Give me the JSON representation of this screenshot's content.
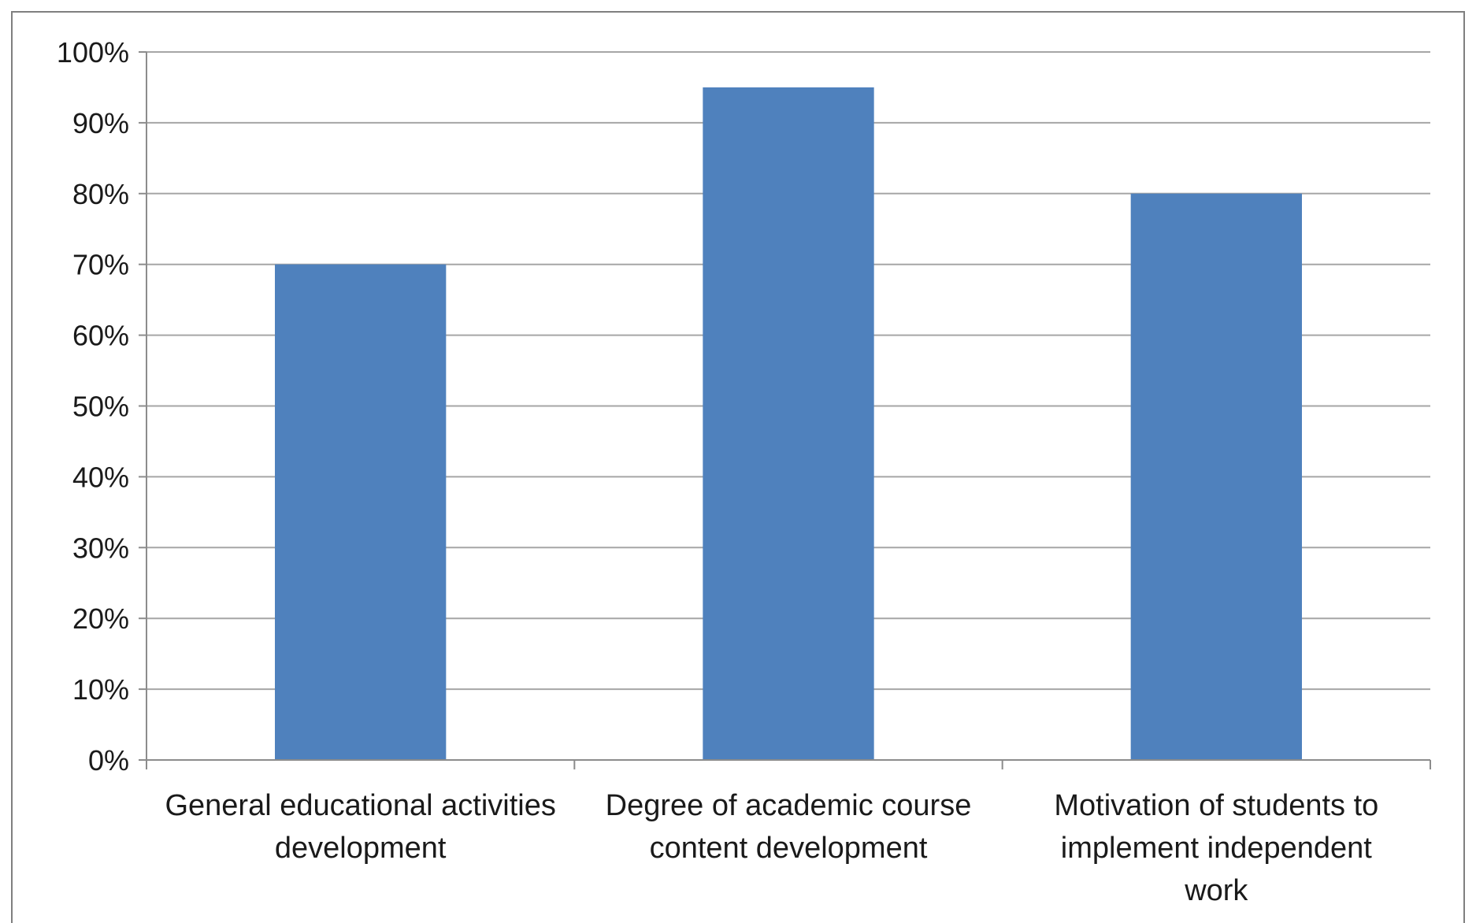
{
  "chart_data": {
    "type": "bar",
    "title": "",
    "xlabel": "",
    "ylabel": "",
    "categories": [
      [
        "General educational activities",
        "development"
      ],
      [
        "Degree of academic course",
        "content development"
      ],
      [
        "Motivation of students to",
        "implement independent",
        "work"
      ]
    ],
    "values": [
      0.7,
      0.95,
      0.8
    ],
    "ylim": [
      0,
      1.0
    ],
    "y_ticks": [
      0,
      0.1,
      0.2,
      0.3,
      0.4,
      0.5,
      0.6,
      0.7,
      0.8,
      0.9,
      1.0
    ],
    "y_tick_labels": [
      "0%",
      "10%",
      "20%",
      "30%",
      "40%",
      "50%",
      "60%",
      "70%",
      "80%",
      "90%",
      "100%"
    ],
    "grid": true,
    "legend": "none",
    "colors": {
      "bar": "#4f81bd",
      "grid": "#a6a6a6",
      "axis": "#8c8c8c",
      "text": "#1a1a1a",
      "frame": "#7f7f7f"
    }
  }
}
